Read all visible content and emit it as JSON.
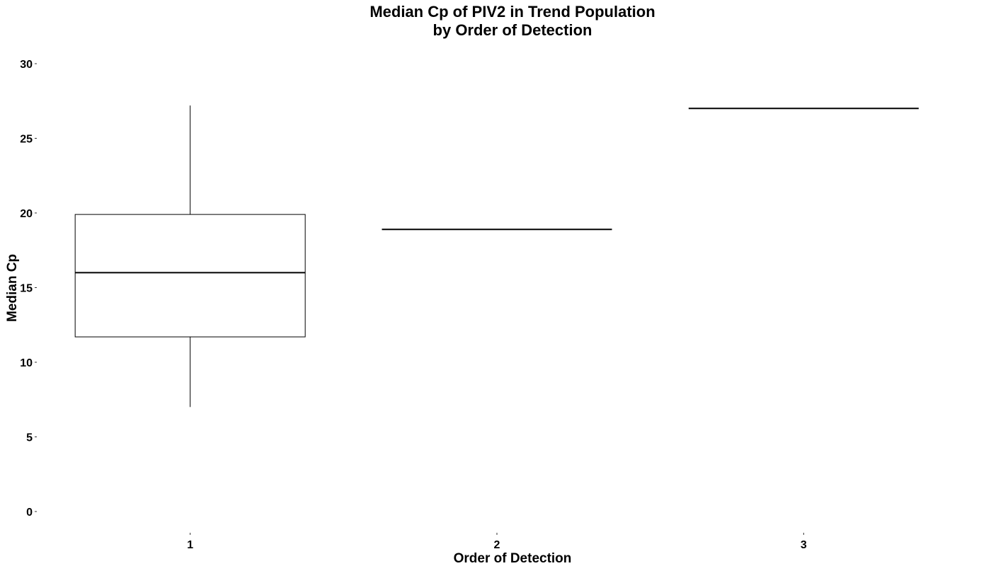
{
  "chart_data": {
    "type": "boxplot",
    "title_lines": [
      "Median Cp of PIV2 in Trend Population",
      "by Order of Detection"
    ],
    "xlabel": "Order of Detection",
    "ylabel": "Median Cp",
    "categories": [
      "1",
      "2",
      "3"
    ],
    "ylim": [
      0,
      30
    ],
    "yticks": [
      0,
      5,
      10,
      15,
      20,
      25,
      30
    ],
    "grid": false,
    "legend": "none",
    "boxes": [
      {
        "category": "1",
        "min": 7.0,
        "q1": 11.7,
        "median": 16.0,
        "q3": 19.9,
        "max": 27.2
      },
      {
        "category": "2",
        "min": 18.9,
        "q1": 18.9,
        "median": 18.9,
        "q3": 18.9,
        "max": 18.9
      },
      {
        "category": "3",
        "min": 27.0,
        "q1": 27.0,
        "median": 27.0,
        "q3": 27.0,
        "max": 27.0
      }
    ],
    "colors": {
      "line": "#000000",
      "fill": "#ffffff",
      "background": "#ffffff"
    }
  }
}
